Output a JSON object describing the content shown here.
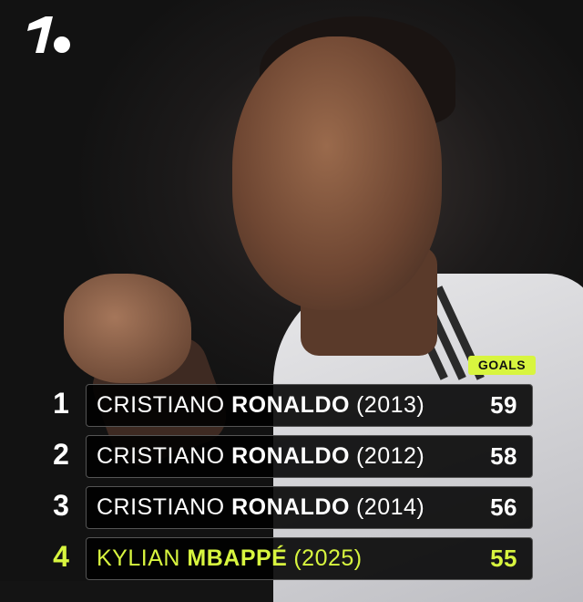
{
  "header": {
    "brand": "1."
  },
  "table": {
    "column_label": "GOALS",
    "accent_color": "#d8f53f",
    "rows": [
      {
        "rank": "1",
        "first": "CRISTIANO",
        "last": "RONALDO",
        "year": "(2013)",
        "goals": "59"
      },
      {
        "rank": "2",
        "first": "CRISTIANO",
        "last": "RONALDO",
        "year": "(2012)",
        "goals": "58"
      },
      {
        "rank": "3",
        "first": "CRISTIANO",
        "last": "RONALDO",
        "year": "(2014)",
        "goals": "56"
      },
      {
        "rank": "4",
        "first": "KYLIAN",
        "last": "MBAPPÉ",
        "year": "(2025)",
        "goals": "55",
        "highlighted": true
      }
    ]
  }
}
